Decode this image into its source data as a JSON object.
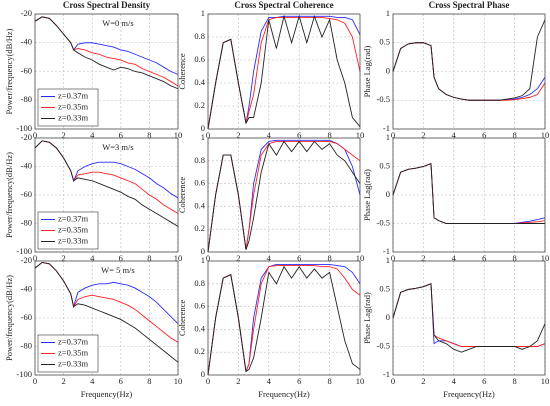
{
  "chart_data": [
    {
      "type": "line",
      "title": "Cross Spectral Density",
      "ylabel": "Power/frequency(dB/Hz)",
      "annotation": "W=0 m/s",
      "legend": "lower left",
      "grid": true,
      "x": [
        0,
        0.5,
        1,
        1.5,
        2,
        2.5,
        2.7,
        3,
        3.5,
        4,
        4.5,
        5,
        5.5,
        6,
        6.5,
        7,
        7.5,
        8,
        8.5,
        9,
        9.5,
        10
      ],
      "xlim": [
        0,
        10
      ],
      "ylim": [
        -100,
        -20
      ],
      "xticks": [
        0,
        2,
        4,
        6,
        8,
        10
      ],
      "yticks": [
        -100,
        -80,
        -60,
        -40,
        -20
      ],
      "series": [
        {
          "name": "z=0.37m",
          "color": "#2b2bff",
          "values": [
            -25,
            -22,
            -23,
            -28,
            -34,
            -40,
            -45,
            -41,
            -40,
            -40,
            -41,
            -42,
            -43,
            -45,
            -46,
            -48,
            -50,
            -52,
            -54,
            -57,
            -60,
            -62
          ]
        },
        {
          "name": "z=0.35m",
          "color": "#ff2020",
          "values": [
            -25,
            -22,
            -23,
            -28,
            -34,
            -40,
            -45,
            -44,
            -45,
            -47,
            -48,
            -50,
            -51,
            -52,
            -54,
            -55,
            -58,
            -60,
            -62,
            -64,
            -67,
            -70
          ]
        },
        {
          "name": "z=0.33m",
          "color": "#222222",
          "values": [
            -25,
            -22,
            -23,
            -28,
            -34,
            -40,
            -45,
            -47,
            -50,
            -52,
            -55,
            -57,
            -59,
            -57,
            -58,
            -60,
            -61,
            -63,
            -65,
            -67,
            -70,
            -72
          ]
        }
      ]
    },
    {
      "type": "line",
      "title": "Cross Spectral Coherence",
      "ylabel": "Coherence",
      "grid": true,
      "x": [
        0,
        0.5,
        1,
        1.5,
        2,
        2.5,
        2.7,
        3,
        3.5,
        4,
        4.5,
        5,
        5.5,
        6,
        6.5,
        7,
        7.5,
        8,
        8.5,
        9,
        9.5,
        10
      ],
      "xlim": [
        0,
        10
      ],
      "ylim": [
        0,
        1
      ],
      "xticks": [
        0,
        2,
        4,
        6,
        8,
        10
      ],
      "yticks": [
        0,
        0.2,
        0.4,
        0.6,
        0.8,
        1
      ],
      "series": [
        {
          "color": "#2b2bff",
          "values": [
            0,
            0.4,
            0.75,
            0.78,
            0.4,
            0.05,
            0.2,
            0.5,
            0.85,
            0.97,
            0.97,
            0.98,
            0.98,
            0.98,
            0.98,
            0.98,
            0.98,
            0.98,
            0.97,
            0.97,
            0.95,
            0.82
          ]
        },
        {
          "color": "#ff2020",
          "values": [
            0,
            0.4,
            0.75,
            0.78,
            0.4,
            0.05,
            0.15,
            0.3,
            0.75,
            0.95,
            0.97,
            0.97,
            0.97,
            0.97,
            0.97,
            0.97,
            0.97,
            0.96,
            0.95,
            0.92,
            0.8,
            0.5
          ]
        },
        {
          "color": "#222222",
          "values": [
            0,
            0.4,
            0.75,
            0.78,
            0.4,
            0.05,
            0.1,
            0.1,
            0.4,
            0.95,
            0.7,
            0.98,
            0.75,
            0.98,
            0.75,
            0.98,
            0.8,
            0.95,
            0.6,
            0.4,
            0.1,
            0.02
          ]
        }
      ]
    },
    {
      "type": "line",
      "title": "Cross Spectral Phase",
      "ylabel": "Phase Lag(rad)",
      "grid": true,
      "x": [
        0,
        0.5,
        1,
        1.5,
        2,
        2.5,
        2.7,
        3,
        3.5,
        4,
        4.5,
        5,
        5.5,
        6,
        6.5,
        7,
        7.5,
        8,
        8.5,
        9,
        9.5,
        10
      ],
      "xlim": [
        0,
        10
      ],
      "ylim": [
        -1,
        1
      ],
      "xticks": [
        0,
        2,
        4,
        6,
        8,
        10
      ],
      "yticks": [
        -1,
        -0.5,
        0,
        0.5,
        1
      ],
      "series": [
        {
          "color": "#2b2bff",
          "values": [
            0,
            0.4,
            0.48,
            0.5,
            0.5,
            0.45,
            -0.1,
            -0.3,
            -0.4,
            -0.45,
            -0.48,
            -0.5,
            -0.5,
            -0.5,
            -0.5,
            -0.5,
            -0.49,
            -0.48,
            -0.45,
            -0.4,
            -0.3,
            -0.1
          ]
        },
        {
          "color": "#ff2020",
          "values": [
            0,
            0.4,
            0.48,
            0.5,
            0.5,
            0.45,
            -0.1,
            -0.3,
            -0.4,
            -0.45,
            -0.48,
            -0.5,
            -0.5,
            -0.5,
            -0.5,
            -0.5,
            -0.5,
            -0.49,
            -0.47,
            -0.45,
            -0.4,
            -0.2
          ]
        },
        {
          "color": "#222222",
          "values": [
            0,
            0.4,
            0.48,
            0.5,
            0.5,
            0.45,
            -0.1,
            -0.3,
            -0.4,
            -0.45,
            -0.48,
            -0.5,
            -0.5,
            -0.5,
            -0.5,
            -0.5,
            -0.48,
            -0.46,
            -0.42,
            -0.3,
            0.6,
            0.9
          ]
        }
      ]
    },
    {
      "type": "line",
      "ylabel": "Power/frequency(dB/Hz)",
      "annotation": "W=3 m/s",
      "legend": "lower left",
      "grid": true,
      "x": [
        0,
        0.5,
        1,
        1.5,
        2,
        2.5,
        2.7,
        3,
        3.5,
        4,
        4.5,
        5,
        5.5,
        6,
        6.5,
        7,
        7.5,
        8,
        8.5,
        9,
        9.5,
        10
      ],
      "xlim": [
        0,
        10
      ],
      "ylim": [
        -100,
        -20
      ],
      "xticks": [
        0,
        2,
        4,
        6,
        8,
        10
      ],
      "yticks": [
        -100,
        -80,
        -60,
        -40,
        -20
      ],
      "series": [
        {
          "name": "z=0.37m",
          "color": "#2b2bff",
          "values": [
            -27,
            -22,
            -23,
            -27,
            -34,
            -43,
            -50,
            -43,
            -40,
            -38,
            -37,
            -37,
            -37,
            -38,
            -40,
            -42,
            -45,
            -48,
            -52,
            -55,
            -59,
            -62
          ]
        },
        {
          "name": "z=0.35m",
          "color": "#ff2020",
          "values": [
            -27,
            -22,
            -23,
            -27,
            -34,
            -43,
            -50,
            -46,
            -45,
            -44,
            -44,
            -45,
            -46,
            -48,
            -50,
            -52,
            -56,
            -60,
            -63,
            -67,
            -70,
            -73
          ]
        },
        {
          "name": "z=0.33m",
          "color": "#222222",
          "values": [
            -27,
            -22,
            -23,
            -27,
            -34,
            -43,
            -50,
            -48,
            -49,
            -50,
            -52,
            -54,
            -56,
            -58,
            -61,
            -63,
            -67,
            -70,
            -73,
            -76,
            -79,
            -82
          ]
        }
      ]
    },
    {
      "type": "line",
      "ylabel": "Coherence",
      "grid": true,
      "x": [
        0,
        0.5,
        1,
        1.5,
        2,
        2.5,
        2.7,
        3,
        3.5,
        4,
        4.5,
        5,
        5.5,
        6,
        6.5,
        7,
        7.5,
        8,
        8.5,
        9,
        9.5,
        10
      ],
      "xlim": [
        0,
        10
      ],
      "ylim": [
        0,
        1
      ],
      "xticks": [
        0,
        2,
        4,
        6,
        8,
        10
      ],
      "yticks": [
        0,
        0.2,
        0.4,
        0.6,
        0.8,
        1
      ],
      "series": [
        {
          "color": "#2b2bff",
          "values": [
            0,
            0.5,
            0.85,
            0.85,
            0.5,
            0.02,
            0.2,
            0.6,
            0.9,
            0.97,
            0.98,
            0.98,
            0.98,
            0.98,
            0.98,
            0.98,
            0.98,
            0.98,
            0.95,
            0.9,
            0.75,
            0.5
          ]
        },
        {
          "color": "#ff2020",
          "values": [
            0,
            0.5,
            0.85,
            0.85,
            0.5,
            0.02,
            0.2,
            0.5,
            0.85,
            0.95,
            0.97,
            0.97,
            0.97,
            0.97,
            0.97,
            0.97,
            0.97,
            0.97,
            0.95,
            0.9,
            0.85,
            0.8
          ]
        },
        {
          "color": "#222222",
          "values": [
            0,
            0.5,
            0.85,
            0.85,
            0.5,
            0.02,
            0.1,
            0.3,
            0.7,
            0.95,
            0.85,
            0.97,
            0.88,
            0.97,
            0.88,
            0.97,
            0.9,
            0.95,
            0.85,
            0.8,
            0.7,
            0.6
          ]
        }
      ]
    },
    {
      "type": "line",
      "ylabel": "Phase Lag(rad)",
      "grid": true,
      "x": [
        0,
        0.5,
        1,
        1.5,
        2,
        2.5,
        2.7,
        3,
        3.5,
        4,
        4.5,
        5,
        5.5,
        6,
        6.5,
        7,
        7.5,
        8,
        8.5,
        9,
        9.5,
        10
      ],
      "xlim": [
        0,
        10
      ],
      "ylim": [
        -1,
        1
      ],
      "xticks": [
        0,
        2,
        4,
        6,
        8,
        10
      ],
      "yticks": [
        -1,
        -0.5,
        0,
        0.5,
        1
      ],
      "series": [
        {
          "color": "#2b2bff",
          "values": [
            0,
            0.4,
            0.45,
            0.47,
            0.5,
            0.55,
            -0.4,
            -0.45,
            -0.5,
            -0.5,
            -0.5,
            -0.5,
            -0.5,
            -0.5,
            -0.5,
            -0.5,
            -0.5,
            -0.5,
            -0.48,
            -0.46,
            -0.43,
            -0.4
          ]
        },
        {
          "color": "#ff2020",
          "values": [
            0,
            0.4,
            0.45,
            0.47,
            0.5,
            0.55,
            -0.4,
            -0.45,
            -0.5,
            -0.5,
            -0.5,
            -0.5,
            -0.5,
            -0.5,
            -0.5,
            -0.5,
            -0.5,
            -0.5,
            -0.49,
            -0.48,
            -0.47,
            -0.45
          ]
        },
        {
          "color": "#222222",
          "values": [
            0,
            0.4,
            0.45,
            0.47,
            0.5,
            0.55,
            -0.4,
            -0.45,
            -0.5,
            -0.5,
            -0.5,
            -0.5,
            -0.5,
            -0.5,
            -0.5,
            -0.5,
            -0.5,
            -0.5,
            -0.5,
            -0.5,
            -0.5,
            -0.5
          ]
        }
      ]
    },
    {
      "type": "line",
      "ylabel": "Power/frequency(dB/Hz)",
      "xlabel": "Frequency(Hz)",
      "annotation": "W= 5 m/s",
      "legend": "lower left",
      "grid": true,
      "x": [
        0,
        0.5,
        1,
        1.5,
        2,
        2.5,
        2.7,
        3,
        3.5,
        4,
        4.5,
        5,
        5.5,
        6,
        6.5,
        7,
        7.5,
        8,
        8.5,
        9,
        9.5,
        10
      ],
      "xlim": [
        0,
        10
      ],
      "ylim": [
        -100,
        -20
      ],
      "xticks": [
        0,
        2,
        4,
        6,
        8,
        10
      ],
      "yticks": [
        -100,
        -80,
        -60,
        -40,
        -20
      ],
      "series": [
        {
          "name": "z=0.37m",
          "color": "#2b2bff",
          "values": [
            -25,
            -21,
            -22,
            -27,
            -34,
            -43,
            -52,
            -42,
            -39,
            -37,
            -36,
            -36,
            -35,
            -36,
            -37,
            -39,
            -42,
            -45,
            -49,
            -54,
            -59,
            -64
          ]
        },
        {
          "name": "z=0.35m",
          "color": "#ff2020",
          "values": [
            -25,
            -21,
            -22,
            -27,
            -34,
            -43,
            -52,
            -47,
            -45,
            -44,
            -45,
            -46,
            -47,
            -49,
            -51,
            -54,
            -58,
            -62,
            -66,
            -70,
            -74,
            -77
          ]
        },
        {
          "name": "z=0.33m",
          "color": "#222222",
          "values": [
            -25,
            -21,
            -22,
            -27,
            -34,
            -43,
            -52,
            -50,
            -51,
            -53,
            -55,
            -57,
            -59,
            -61,
            -64,
            -67,
            -71,
            -75,
            -79,
            -83,
            -87,
            -91
          ]
        }
      ]
    },
    {
      "type": "line",
      "ylabel": "Coherence",
      "xlabel": "Frequency(Hz)",
      "grid": true,
      "x": [
        0,
        0.5,
        1,
        1.5,
        2,
        2.5,
        2.7,
        3,
        3.5,
        4,
        4.5,
        5,
        5.5,
        6,
        6.5,
        7,
        7.5,
        8,
        8.5,
        9,
        9.5,
        10
      ],
      "xlim": [
        0,
        10
      ],
      "ylim": [
        0,
        1
      ],
      "xticks": [
        0,
        2,
        4,
        6,
        8,
        10
      ],
      "yticks": [
        0,
        0.2,
        0.4,
        0.6,
        0.8,
        1
      ],
      "series": [
        {
          "color": "#2b2bff",
          "values": [
            0,
            0.5,
            0.85,
            0.88,
            0.5,
            0.03,
            0.1,
            0.5,
            0.85,
            0.95,
            0.97,
            0.97,
            0.97,
            0.97,
            0.97,
            0.97,
            0.97,
            0.97,
            0.96,
            0.95,
            0.9,
            0.8
          ]
        },
        {
          "color": "#ff2020",
          "values": [
            0,
            0.5,
            0.85,
            0.88,
            0.5,
            0.03,
            0.1,
            0.4,
            0.8,
            0.95,
            0.96,
            0.96,
            0.96,
            0.96,
            0.96,
            0.96,
            0.95,
            0.95,
            0.93,
            0.85,
            0.75,
            0.7
          ]
        },
        {
          "color": "#222222",
          "values": [
            0,
            0.5,
            0.85,
            0.88,
            0.5,
            0.03,
            0.05,
            0.15,
            0.5,
            0.9,
            0.8,
            0.95,
            0.85,
            0.95,
            0.85,
            0.93,
            0.85,
            0.9,
            0.6,
            0.3,
            0.1,
            0.05
          ]
        }
      ]
    },
    {
      "type": "line",
      "ylabel": "Phase Lag(rad)",
      "xlabel": "Frequency(Hz)",
      "grid": true,
      "x": [
        0,
        0.5,
        1,
        1.5,
        2,
        2.5,
        2.7,
        3,
        3.5,
        4,
        4.5,
        5,
        5.5,
        6,
        6.5,
        7,
        7.5,
        8,
        8.5,
        9,
        9.5,
        10
      ],
      "xlim": [
        0,
        10
      ],
      "ylim": [
        -1,
        1
      ],
      "xticks": [
        0,
        2,
        4,
        6,
        8,
        10
      ],
      "yticks": [
        -1,
        -0.5,
        0,
        0.5,
        1
      ],
      "series": [
        {
          "color": "#2b2bff",
          "values": [
            0,
            0.45,
            0.5,
            0.52,
            0.55,
            0.6,
            -0.45,
            -0.4,
            -0.4,
            -0.45,
            -0.5,
            -0.5,
            -0.5,
            -0.5,
            -0.5,
            -0.5,
            -0.5,
            -0.5,
            -0.5,
            -0.5,
            -0.5,
            -0.45
          ]
        },
        {
          "color": "#ff2020",
          "values": [
            0,
            0.45,
            0.5,
            0.52,
            0.55,
            0.6,
            -0.3,
            -0.35,
            -0.4,
            -0.45,
            -0.5,
            -0.5,
            -0.5,
            -0.5,
            -0.5,
            -0.5,
            -0.5,
            -0.5,
            -0.5,
            -0.5,
            -0.5,
            -0.45
          ]
        },
        {
          "color": "#222222",
          "values": [
            0,
            0.45,
            0.5,
            0.52,
            0.55,
            0.6,
            -0.3,
            -0.4,
            -0.45,
            -0.55,
            -0.6,
            -0.55,
            -0.5,
            -0.5,
            -0.5,
            -0.5,
            -0.5,
            -0.5,
            -0.55,
            -0.5,
            -0.4,
            -0.1
          ]
        }
      ]
    }
  ]
}
